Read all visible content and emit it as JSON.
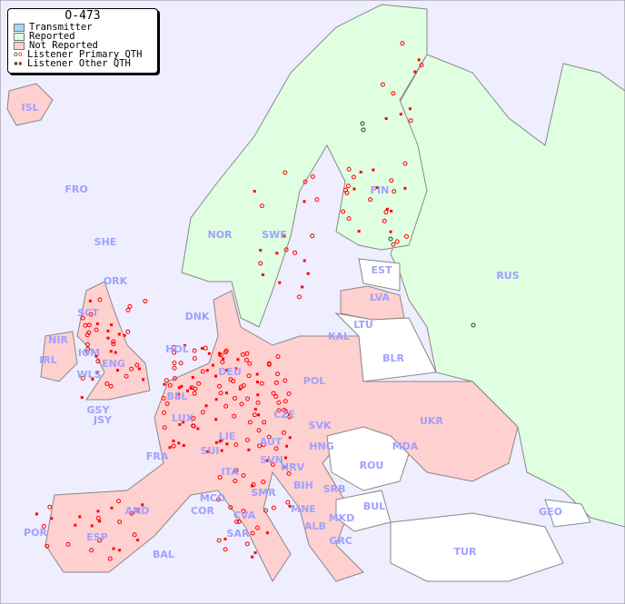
{
  "legend": {
    "title": "O-473",
    "items": [
      {
        "label": "Transmitter",
        "color": "#a0d8f8"
      },
      {
        "label": "Reported",
        "color": "#e0ffe0"
      },
      {
        "label": "Not Reported",
        "color": "#ffd0d0"
      },
      {
        "label": "Listener Primary QTH",
        "marker": "circle",
        "colors": [
          "#006000",
          "#ff0000"
        ]
      },
      {
        "label": "Listener Other QTH",
        "marker": "square",
        "colors": [
          "#006000",
          "#ff0000"
        ]
      }
    ]
  },
  "colors": {
    "sea": "#eeeeff",
    "reported": "#e0ffe0",
    "not_reported": "#ffd0d0",
    "no_listener": "#ffffff",
    "label": "#a0a0ff",
    "marker": "#ff0000"
  },
  "countries": [
    "ISL",
    "FRO",
    "SHE",
    "ORK",
    "NOR",
    "SWE",
    "FIN",
    "RUS",
    "EST",
    "LVA",
    "LTU",
    "KAL",
    "BLR",
    "DNK",
    "SCT",
    "NIR",
    "IRL",
    "IOM",
    "WLS",
    "ENG",
    "HOL",
    "DEU",
    "POL",
    "BEL",
    "GSY",
    "JSY",
    "LUX",
    "CZE",
    "SVK",
    "UKR",
    "MDA",
    "FRA",
    "SUI",
    "LIE",
    "AUT",
    "HNG",
    "SVN",
    "HRV",
    "ROU",
    "ITA",
    "BIH",
    "SRB",
    "MCO",
    "COR",
    "SMR",
    "CVA",
    "MNE",
    "BUL",
    "GEO",
    "AND",
    "ALB",
    "MKD",
    "POR",
    "ESP",
    "SAR",
    "GRC",
    "TUR",
    "BAL"
  ]
}
